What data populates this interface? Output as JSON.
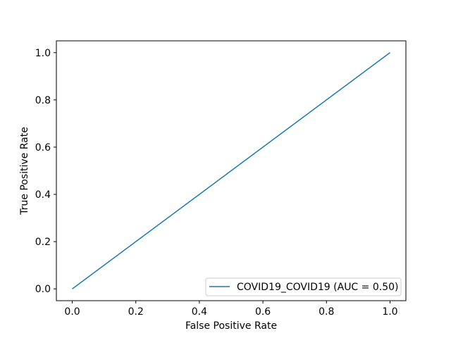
{
  "chart_data": {
    "type": "line",
    "title": "",
    "xlabel": "False Positive Rate",
    "ylabel": "True Positive Rate",
    "xlim": [
      -0.05,
      1.05
    ],
    "ylim": [
      -0.05,
      1.05
    ],
    "xticks": [
      0.0,
      0.2,
      0.4,
      0.6,
      0.8,
      1.0
    ],
    "yticks": [
      0.0,
      0.2,
      0.4,
      0.6,
      0.8,
      1.0
    ],
    "xtick_labels": [
      "0.0",
      "0.2",
      "0.4",
      "0.6",
      "0.8",
      "1.0"
    ],
    "ytick_labels": [
      "0.0",
      "0.2",
      "0.4",
      "0.6",
      "0.8",
      "1.0"
    ],
    "grid": false,
    "legend_position": "lower-right",
    "series": [
      {
        "name": "COVID19_COVID19 (AUC = 0.50)",
        "color": "#1f77b4",
        "x": [
          0.0,
          1.0
        ],
        "y": [
          0.0,
          1.0
        ]
      }
    ]
  }
}
